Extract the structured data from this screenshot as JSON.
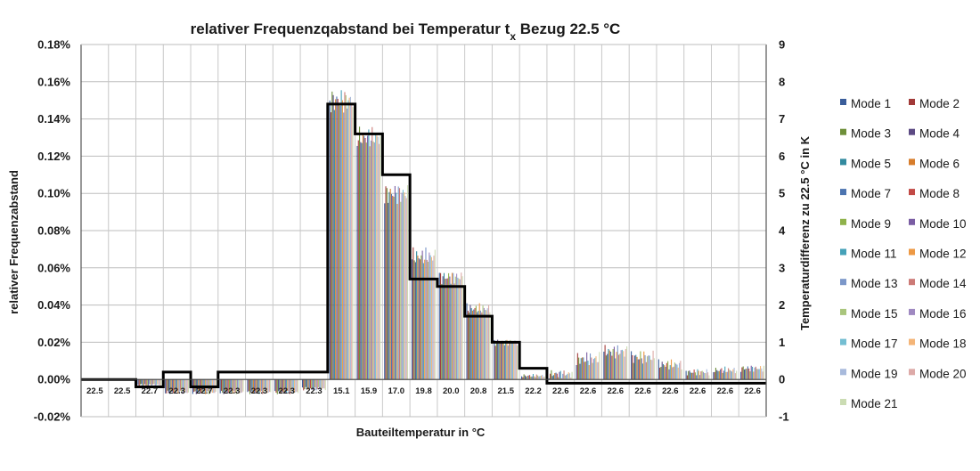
{
  "chart_data": {
    "type": "bar",
    "title_main": "relativer Frequenzqabstand bei Temperatur t",
    "title_sub": "x",
    "title_tail": " Bezug 22.5 °C",
    "xlabel": "Bauteiltemperatur  in °C",
    "ylabel": "relativer Frequenzabstand",
    "y2label": "Temperaturdifferenz zu 22.5 °C in K",
    "ylim": [
      -0.0002,
      0.0018
    ],
    "y2lim": [
      -1,
      9
    ],
    "y_ticks": [
      "-0.02%",
      "0.00%",
      "0.02%",
      "0.04%",
      "0.06%",
      "0.08%",
      "0.10%",
      "0.12%",
      "0.14%",
      "0.16%",
      "0.18%"
    ],
    "y2_ticks": [
      "-1",
      "0",
      "1",
      "2",
      "3",
      "4",
      "5",
      "6",
      "7",
      "8",
      "9"
    ],
    "grid": true,
    "legend_position": "right",
    "categories": [
      "22.5",
      "22.5",
      "22.7",
      "22.3",
      "22.7",
      "22.3",
      "22.3",
      "22.3",
      "22.3",
      "15.1",
      "15.9",
      "17.0",
      "19.8",
      "20.0",
      "20.8",
      "21.5",
      "22.2",
      "22.6",
      "22.6",
      "22.6",
      "22.6",
      "22.6",
      "22.6",
      "22.6",
      "22.6"
    ],
    "temperature_difference": [
      0.0,
      0.0,
      -0.2,
      0.2,
      -0.2,
      0.2,
      0.2,
      0.2,
      0.2,
      7.4,
      6.6,
      5.5,
      2.7,
      2.5,
      1.7,
      1.0,
      0.3,
      -0.1,
      -0.1,
      -0.1,
      -0.1,
      -0.1,
      -0.1,
      -0.1,
      -0.1
    ],
    "series_names": [
      "Mode 1",
      "Mode 2",
      "Mode 3",
      "Mode 4",
      "Mode 5",
      "Mode 6",
      "Mode 7",
      "Mode 8",
      "Mode 9",
      "Mode 10",
      "Mode 11",
      "Mode 12",
      "Mode 13",
      "Mode 14",
      "Mode 15",
      "Mode 16",
      "Mode 17",
      "Mode 18",
      "Mode 19",
      "Mode 20",
      "Mode 21"
    ],
    "series_colors": [
      "#3a5d9a",
      "#a23a38",
      "#6e8f3a",
      "#5c4a83",
      "#338a9f",
      "#d77d2c",
      "#4c74b0",
      "#c24a46",
      "#8fb24b",
      "#7a5da3",
      "#45a1b8",
      "#ed9944",
      "#7b97c9",
      "#cc7a76",
      "#a9c57c",
      "#9f89c1",
      "#74bed2",
      "#f4b578",
      "#a8badc",
      "#ddaaa8",
      "#cbdcb3"
    ],
    "category_mean_values": [
      0.0,
      0.0,
      -3e-05,
      -7e-05,
      -7e-05,
      -7e-05,
      -7e-05,
      -7e-05,
      -5e-05,
      0.0015,
      0.0013,
      0.001,
      0.00066,
      0.00055,
      0.00038,
      0.0002,
      2e-05,
      3e-05,
      0.00011,
      0.00015,
      0.00012,
      8e-05,
      4e-05,
      5e-05,
      6e-05
    ],
    "category_spread": [
      6e-06,
      6e-06,
      8e-06,
      1e-05,
      1e-05,
      1e-05,
      1e-05,
      1e-05,
      1e-05,
      7e-05,
      6e-05,
      6e-05,
      5e-05,
      4e-05,
      3e-05,
      2e-05,
      1e-05,
      2.5e-05,
      4e-05,
      4e-05,
      4e-05,
      3e-05,
      2e-05,
      2e-05,
      2e-05
    ]
  }
}
